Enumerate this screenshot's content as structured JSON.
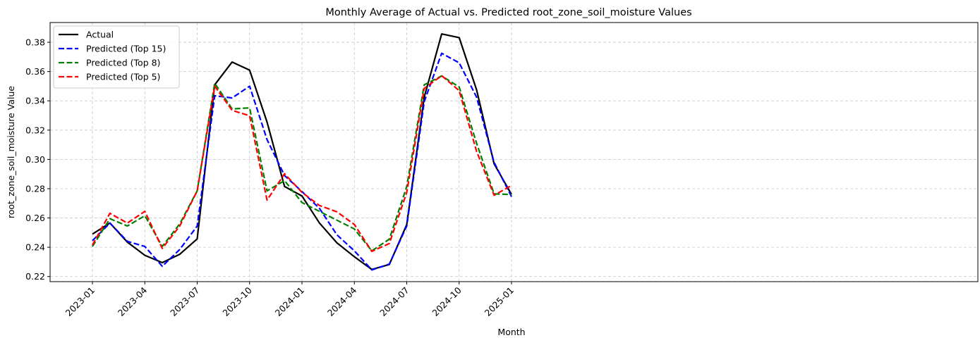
{
  "chart_data": {
    "type": "line",
    "title": "Monthly Average of Actual vs. Predicted root_zone_soil_moisture Values",
    "xlabel": "Month",
    "ylabel": "root_zone_soil_moisture Value",
    "x": [
      "2023-01",
      "2023-02",
      "2023-03",
      "2023-04",
      "2023-05",
      "2023-06",
      "2023-07",
      "2023-08",
      "2023-09",
      "2023-10",
      "2023-11",
      "2023-12",
      "2024-01",
      "2024-02",
      "2024-03",
      "2024-04",
      "2024-05",
      "2024-06",
      "2024-07",
      "2024-08",
      "2024-09",
      "2024-10",
      "2024-11",
      "2024-12",
      "2025-01"
    ],
    "x_ticks": [
      "2023-01",
      "2023-04",
      "2023-07",
      "2023-10",
      "2024-01",
      "2024-04",
      "2024-07",
      "2024-10",
      "2025-01"
    ],
    "y_ticks": [
      "0.22",
      "0.24",
      "0.26",
      "0.28",
      "0.30",
      "0.32",
      "0.34",
      "0.36",
      "0.38"
    ],
    "ylim": [
      0.2165,
      0.3935
    ],
    "grid": true,
    "legend_position": "upper-left",
    "series": [
      {
        "name": "Actual",
        "color": "#000000",
        "dash": "solid",
        "values": [
          0.249,
          0.2565,
          0.2435,
          0.2345,
          0.2295,
          0.2352,
          0.2457,
          0.351,
          0.3665,
          0.361,
          0.3255,
          0.2815,
          0.275,
          0.2565,
          0.243,
          0.2335,
          0.2248,
          0.2282,
          0.2555,
          0.3425,
          0.3857,
          0.3832,
          0.3475,
          0.297,
          0.276
        ]
      },
      {
        "name": "Predicted (Top 15)",
        "color": "#0000ff",
        "dash": "dashed",
        "values": [
          0.2445,
          0.2565,
          0.244,
          0.2405,
          0.227,
          0.2385,
          0.2545,
          0.3435,
          0.342,
          0.35,
          0.3135,
          0.289,
          0.278,
          0.2665,
          0.2485,
          0.2375,
          0.2245,
          0.2285,
          0.2545,
          0.3395,
          0.3725,
          0.366,
          0.3425,
          0.298,
          0.2745
        ]
      },
      {
        "name": "Predicted (Top 8)",
        "color": "#008000",
        "dash": "dashed",
        "values": [
          0.2405,
          0.2595,
          0.2545,
          0.2615,
          0.2405,
          0.256,
          0.2785,
          0.352,
          0.3345,
          0.3352,
          0.2785,
          0.2855,
          0.2705,
          0.2645,
          0.2585,
          0.2525,
          0.2375,
          0.2455,
          0.2815,
          0.351,
          0.357,
          0.3495,
          0.311,
          0.2765,
          0.276
        ]
      },
      {
        "name": "Predicted (Top 5)",
        "color": "#ff0000",
        "dash": "dashed",
        "values": [
          0.2415,
          0.2632,
          0.2565,
          0.2645,
          0.2392,
          0.2545,
          0.2785,
          0.35,
          0.3335,
          0.3298,
          0.2722,
          0.2902,
          0.2775,
          0.2685,
          0.2642,
          0.2555,
          0.2372,
          0.2425,
          0.2775,
          0.3485,
          0.3572,
          0.347,
          0.3055,
          0.2755,
          0.2822
        ]
      }
    ]
  }
}
